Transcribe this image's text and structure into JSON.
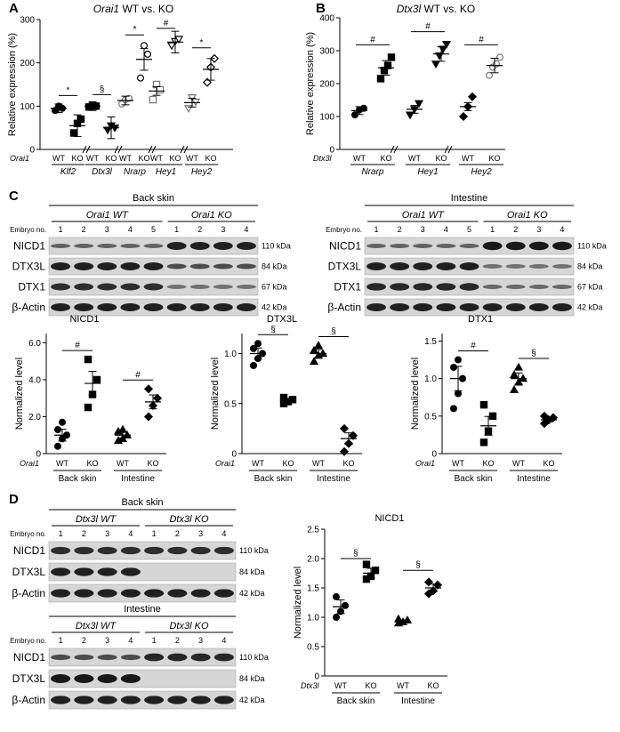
{
  "panels": {
    "A": {
      "letter": "A",
      "title_gene": "Orai1",
      "title_rest": " WT vs. KO",
      "ylabel": "Relative expression (%)",
      "yticks": [
        "0",
        "100",
        "200",
        "300"
      ],
      "genotype_label": "Orai1",
      "groups": [
        {
          "gene": "Klf2",
          "labels": [
            "WT",
            "KO"
          ],
          "sig": "*"
        },
        {
          "gene": "Dtx3l",
          "labels": [
            "WT",
            "KO"
          ],
          "sig": "§"
        },
        {
          "gene": "Nrarp",
          "labels": [
            "WT",
            "KO"
          ],
          "sig": "*"
        },
        {
          "gene": "Hey1",
          "labels": [
            "WT",
            "KO"
          ],
          "sig": "#"
        },
        {
          "gene": "Hey2",
          "labels": [
            "WT",
            "KO"
          ],
          "sig": "*"
        }
      ]
    },
    "B": {
      "letter": "B",
      "title_gene": "Dtx3l",
      "title_rest": " WT vs. KO",
      "ylabel": "Relative expression (%)",
      "yticks": [
        "0",
        "100",
        "200",
        "300",
        "400"
      ],
      "genotype_label": "Dtx3l",
      "groups": [
        {
          "gene": "Nrarp",
          "labels": [
            "WT",
            "KO"
          ],
          "sig": "#"
        },
        {
          "gene": "Hey1",
          "labels": [
            "WT",
            "KO"
          ],
          "sig": "#"
        },
        {
          "gene": "Hey2",
          "labels": [
            "WT",
            "KO"
          ],
          "sig": "#"
        }
      ]
    },
    "C": {
      "letter": "C",
      "blot_left": {
        "tissue": "Back skin",
        "wt_label": "Orai1 WT",
        "ko_label": "Orai1 KO",
        "embryo_label": "Embryo no.",
        "lanes": [
          "1",
          "2",
          "3",
          "4",
          "5",
          "1",
          "2",
          "3",
          "4"
        ],
        "rows": [
          "NICD1",
          "DTX3L",
          "DTX1",
          "β-Actin"
        ],
        "kda": [
          "110 kDa",
          "84 kDa",
          "67 kDa",
          "42 kDa"
        ]
      },
      "blot_right": {
        "tissue": "Intestine",
        "wt_label": "Orai1 WT",
        "ko_label": "Orai1 KO",
        "embryo_label": "Embryo no.",
        "lanes": [
          "1",
          "2",
          "3",
          "4",
          "5",
          "1",
          "2",
          "3",
          "4"
        ],
        "rows": [
          "NICD1",
          "DTX3L",
          "DTX1",
          "β-Actin"
        ],
        "kda": [
          "110 kDa",
          "84 kDa",
          "67 kDa",
          "42 kDa"
        ]
      },
      "plots": [
        {
          "title": "NICD1",
          "ylabel": "Normalized level",
          "yticks": [
            "0",
            "2.0",
            "4.0",
            "6.0"
          ],
          "genotype": "Orai1",
          "xlabels": [
            "WT",
            "KO",
            "WT",
            "KO"
          ],
          "tissues": [
            "Back skin",
            "Intestine"
          ],
          "sigs": [
            "#",
            "#"
          ]
        },
        {
          "title": "DTX3L",
          "ylabel": "Normalized level",
          "yticks": [
            "0",
            "0.5",
            "1.0"
          ],
          "genotype": "Orai1",
          "xlabels": [
            "WT",
            "KO",
            "WT",
            "KO"
          ],
          "tissues": [
            "Back skin",
            "Intestine"
          ],
          "sigs": [
            "§",
            "§"
          ]
        },
        {
          "title": "DTX1",
          "ylabel": "Normalized level",
          "yticks": [
            "0",
            "0.5",
            "1.0",
            "1.5"
          ],
          "genotype": "Orai1",
          "xlabels": [
            "WT",
            "KO",
            "WT",
            "KO"
          ],
          "tissues": [
            "Back skin",
            "Intestine"
          ],
          "sigs": [
            "#",
            "§"
          ]
        }
      ]
    },
    "D": {
      "letter": "D",
      "blot_top": {
        "tissue": "Back skin",
        "wt_label": "Dtx3l WT",
        "ko_label": "Dtx3l KO",
        "embryo_label": "Embryo no.",
        "lanes": [
          "1",
          "2",
          "3",
          "4",
          "1",
          "2",
          "3",
          "4"
        ],
        "rows": [
          "NICD1",
          "DTX3L",
          "β-Actin"
        ],
        "kda": [
          "110 kDa",
          "84 kDa",
          "42 kDa"
        ]
      },
      "blot_bottom": {
        "tissue": "Intestine",
        "wt_label": "Dtx3l WT",
        "ko_label": "Dtx3l KO",
        "embryo_label": "Embryo no.",
        "lanes": [
          "1",
          "2",
          "3",
          "4",
          "1",
          "2",
          "3",
          "4"
        ],
        "rows": [
          "NICD1",
          "DTX3L",
          "β-Actin"
        ],
        "kda": [
          "110 kDa",
          "84 kDa",
          "42 kDa"
        ]
      },
      "plot": {
        "title": "NICD1",
        "ylabel": "Normalized level",
        "yticks": [
          "0",
          "0.5",
          "1.0",
          "1.5",
          "2.0",
          "2.5"
        ],
        "genotype": "Dtx3l",
        "xlabels": [
          "WT",
          "KO",
          "WT",
          "KO"
        ],
        "tissues": [
          "Back skin",
          "Intestine"
        ],
        "sigs": [
          "§",
          "§"
        ]
      }
    }
  },
  "chart_data": [
    {
      "type": "scatter",
      "title": "Orai1 WT vs. KO",
      "ylabel": "Relative expression (%)",
      "ylim": [
        0,
        300
      ],
      "categories": [
        "Klf2",
        "Dtx3l",
        "Nrarp",
        "Hey1",
        "Hey2"
      ],
      "series": [
        {
          "name": "WT",
          "means": [
            95,
            100,
            113,
            135,
            108
          ],
          "points": [
            [
              90,
              100,
              95
            ],
            [
              98,
              102,
              100
            ],
            [
              105,
              115,
              118
            ],
            [
              115,
              150,
              138
            ],
            [
              95,
              120,
              110
            ]
          ]
        },
        {
          "name": "KO",
          "means": [
            55,
            50,
            208,
            248,
            185
          ],
          "points": [
            [
              38,
              60,
              70
            ],
            [
              45,
              55,
              50
            ],
            [
              165,
              240,
              220
            ],
            [
              240,
              250,
              255
            ],
            [
              155,
              190,
              210
            ]
          ]
        }
      ]
    },
    {
      "type": "scatter",
      "title": "Dtx3l WT vs. KO",
      "ylabel": "Relative expression (%)",
      "ylim": [
        0,
        400
      ],
      "categories": [
        "Nrarp",
        "Hey1",
        "Hey2"
      ],
      "series": [
        {
          "name": "WT",
          "means": [
            118,
            122,
            130
          ],
          "points": [
            [
              105,
              120,
              125
            ],
            [
              105,
              122,
              140
            ],
            [
              100,
              130,
              160
            ]
          ]
        },
        {
          "name": "KO",
          "means": [
            248,
            290,
            255
          ],
          "points": [
            [
              215,
              240,
              255,
              280
            ],
            [
              260,
              285,
              305,
              320
            ],
            [
              225,
              250,
              260,
              280
            ]
          ]
        }
      ]
    },
    {
      "type": "scatter",
      "title": "NICD1",
      "ylabel": "Normalized level",
      "ylim": [
        0,
        6.5
      ],
      "categories": [
        "WT Back skin",
        "KO Back skin",
        "WT Intestine",
        "KO Intestine"
      ],
      "points": [
        [
          0.4,
          0.8,
          1.0,
          1.3,
          1.7
        ],
        [
          2.5,
          3.2,
          4.0,
          5.1
        ],
        [
          0.7,
          0.8,
          1.0,
          1.2,
          1.3
        ],
        [
          2.0,
          2.6,
          3.0,
          3.5
        ]
      ],
      "means": [
        1.0,
        3.8,
        1.0,
        2.8
      ]
    },
    {
      "type": "scatter",
      "title": "DTX3L",
      "ylabel": "Normalized level",
      "ylim": [
        0,
        1.2
      ],
      "categories": [
        "WT Back skin",
        "KO Back skin",
        "WT Intestine",
        "KO Intestine"
      ],
      "points": [
        [
          0.88,
          0.95,
          1.0,
          1.05,
          1.1
        ],
        [
          0.5,
          0.52,
          0.54,
          0.56
        ],
        [
          0.92,
          0.98,
          1.0,
          1.03,
          1.08
        ],
        [
          0.02,
          0.1,
          0.18,
          0.25
        ]
      ],
      "means": [
        1.0,
        0.53,
        1.0,
        0.15
      ]
    },
    {
      "type": "scatter",
      "title": "DTX1",
      "ylabel": "Normalized level",
      "ylim": [
        0,
        1.6
      ],
      "categories": [
        "WT Back skin",
        "KO Back skin",
        "WT Intestine",
        "KO Intestine"
      ],
      "points": [
        [
          0.6,
          0.8,
          1.0,
          1.15,
          1.25
        ],
        [
          0.15,
          0.3,
          0.5,
          0.65
        ],
        [
          0.85,
          0.95,
          1.0,
          1.05,
          1.15
        ],
        [
          0.4,
          0.45,
          0.48,
          0.5
        ]
      ],
      "means": [
        1.0,
        0.37,
        1.0,
        0.45
      ]
    },
    {
      "type": "scatter",
      "title": "NICD1",
      "ylabel": "Normalized level",
      "ylim": [
        0,
        2.5
      ],
      "categories": [
        "WT Back skin",
        "KO Back skin",
        "WT Intestine",
        "KO Intestine"
      ],
      "points": [
        [
          1.0,
          1.1,
          1.2,
          1.35
        ],
        [
          1.65,
          1.7,
          1.8,
          1.9
        ],
        [
          0.9,
          0.92,
          0.95,
          0.97
        ],
        [
          1.4,
          1.45,
          1.55,
          1.6
        ]
      ],
      "means": [
        1.18,
        1.75,
        0.93,
        1.5
      ]
    }
  ]
}
